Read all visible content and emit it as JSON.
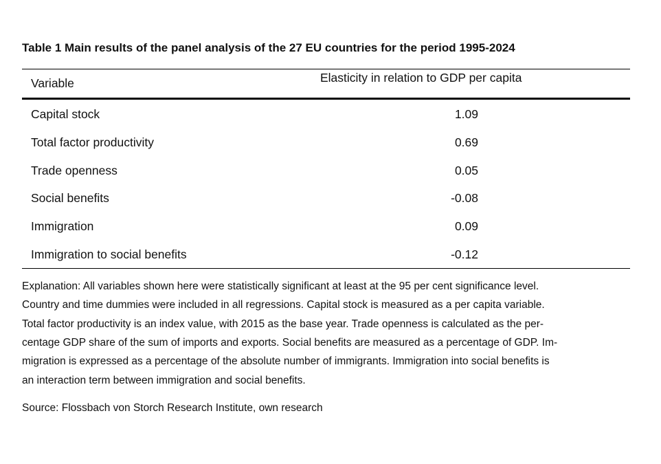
{
  "title": "Table 1 Main results of the panel analysis of the 27 EU countries for the period 1995-2024",
  "table": {
    "header": [
      "Variable",
      "Elasticity in relation to GDP per capita"
    ],
    "rows": [
      [
        "Capital stock",
        "1.09"
      ],
      [
        "Total factor productivity",
        "0.69"
      ],
      [
        "Trade openness",
        "0.05"
      ],
      [
        "Social benefits",
        "-0.08"
      ],
      [
        "Immigration",
        "0.09"
      ],
      [
        "Immigration to social benefits",
        "-0.12"
      ]
    ]
  },
  "explanation": [
    "Explanation: All variables shown here were statistically significant at least at the 95 per cent significance level.",
    "Country and time dummies were included in all regressions. Capital stock is measured as a per capita variable.",
    "Total factor productivity is an index value, with 2015 as the base year. Trade openness is calculated as the per-",
    "centage GDP share of the sum of imports and exports. Social benefits are measured as a percentage of GDP. Im-",
    "migration is expressed as a percentage of the absolute number of immigrants. Immigration into social benefits is",
    "an interaction term between immigration and social benefits."
  ],
  "source": "Source: Flossbach von Storch Research Institute, own research"
}
